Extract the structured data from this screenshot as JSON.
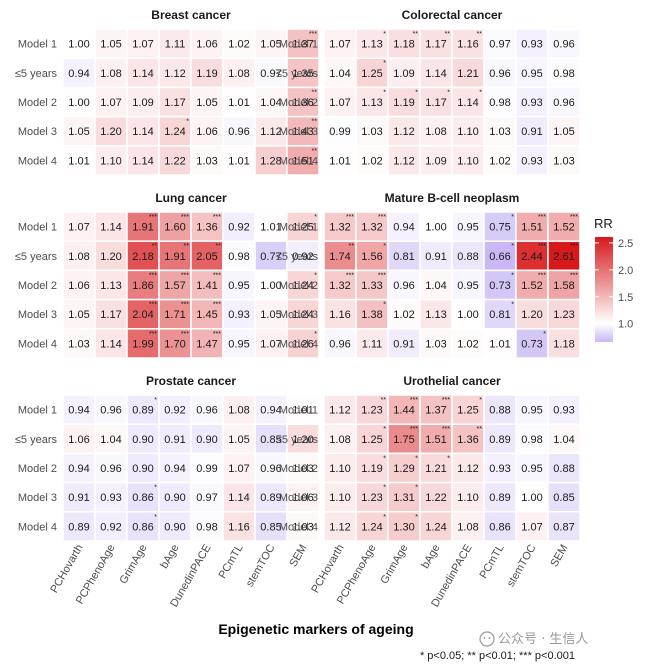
{
  "chart_data": {
    "type": "heatmap",
    "x_title": "Epigenetic markers of ageing",
    "footnote": "* p<0.05; ** p<0.01; *** p<0.001",
    "watermark": "公众号 · 生信人",
    "legend": {
      "title": "RR",
      "ticks": [
        "1.0",
        "1.5",
        "2.0",
        "2.5"
      ],
      "tick_values": [
        1.0,
        1.5,
        2.0,
        2.5
      ],
      "range": [
        0.66,
        2.61
      ]
    },
    "colors": {
      "low": "#c9b8f5",
      "mid": "#ffffff",
      "high": "#d7191c"
    },
    "markers": [
      "PCHovarth",
      "PCPhenoAge",
      "GrimAge",
      "bAge",
      "DunedinPACE",
      "PCmTL",
      "stemTOC",
      "SEM"
    ],
    "rows": [
      "Model 1",
      "≤5 years",
      "Model 2",
      "Model 3",
      "Model 4"
    ],
    "panels": [
      {
        "title": "Breast cancer",
        "values": [
          [
            1.0,
            1.05,
            1.07,
            1.11,
            1.06,
            1.02,
            1.05,
            1.37
          ],
          [
            0.94,
            1.08,
            1.14,
            1.12,
            1.19,
            1.08,
            0.97,
            1.35
          ],
          [
            1.0,
            1.07,
            1.09,
            1.17,
            1.05,
            1.01,
            1.04,
            1.36
          ],
          [
            1.05,
            1.2,
            1.14,
            1.24,
            1.06,
            0.96,
            1.12,
            1.43
          ],
          [
            1.01,
            1.1,
            1.14,
            1.22,
            1.03,
            1.01,
            1.28,
            1.51
          ]
        ],
        "labels": [
          [
            "1.00",
            "1.05",
            "1.07",
            "1.11",
            "1.06",
            "1.02",
            "1.05",
            "1.37"
          ],
          [
            "0.94",
            "1.08",
            "1.14",
            "1.12",
            "1.19",
            "1.08",
            "0.97",
            "1.35"
          ],
          [
            "1.00",
            "1.07",
            "1.09",
            "1.17",
            "1.05",
            "1.01",
            "1.04",
            "1.36"
          ],
          [
            "1.05",
            "1.20",
            "1.14",
            "1.24",
            "1.06",
            "0.96",
            "1.12",
            "1.43"
          ],
          [
            "1.01",
            "1.10",
            "1.14",
            "1.22",
            "1.03",
            "1.01",
            "1.28",
            "1.51"
          ]
        ],
        "stars": [
          [
            "",
            "",
            "",
            "",
            "",
            "",
            "",
            "***"
          ],
          [
            "",
            "",
            "",
            "",
            "",
            "",
            "",
            ""
          ],
          [
            "",
            "",
            "",
            "",
            "",
            "",
            "",
            "**"
          ],
          [
            "",
            "",
            "",
            "*",
            "",
            "",
            "",
            "**"
          ],
          [
            "",
            "",
            "",
            "",
            "",
            "",
            "",
            "**"
          ]
        ]
      },
      {
        "title": "Colorectal cancer",
        "values": [
          [
            1.07,
            1.13,
            1.18,
            1.17,
            1.16,
            0.97,
            0.93,
            0.96
          ],
          [
            1.04,
            1.25,
            1.09,
            1.14,
            1.21,
            0.96,
            0.95,
            0.98
          ],
          [
            1.07,
            1.13,
            1.19,
            1.17,
            1.14,
            0.98,
            0.93,
            0.96
          ],
          [
            0.99,
            1.03,
            1.12,
            1.08,
            1.1,
            1.03,
            0.91,
            1.05
          ],
          [
            1.01,
            1.02,
            1.12,
            1.09,
            1.1,
            1.02,
            0.93,
            1.03
          ]
        ],
        "labels": [
          [
            "1.07",
            "1.13",
            "1.18",
            "1.17",
            "1.16",
            "0.97",
            "0.93",
            "0.96"
          ],
          [
            "1.04",
            "1.25",
            "1.09",
            "1.14",
            "1.21",
            "0.96",
            "0.95",
            "0.98"
          ],
          [
            "1.07",
            "1.13",
            "1.19",
            "1.17",
            "1.14",
            "0.98",
            "0.93",
            "0.96"
          ],
          [
            "0.99",
            "1.03",
            "1.12",
            "1.08",
            "1.10",
            "1.03",
            "0.91",
            "1.05"
          ],
          [
            "1.01",
            "1.02",
            "1.12",
            "1.09",
            "1.10",
            "1.02",
            "0.93",
            "1.03"
          ]
        ],
        "stars": [
          [
            "",
            "*",
            "**",
            "**",
            "**",
            "",
            "",
            ""
          ],
          [
            "",
            "*",
            "",
            "",
            "",
            "",
            "",
            ""
          ],
          [
            "",
            "*",
            "*",
            "*",
            "*",
            "",
            "",
            ""
          ],
          [
            "",
            "",
            "",
            "",
            "",
            "",
            "",
            ""
          ],
          [
            "",
            "",
            "",
            "",
            "",
            "",
            "",
            ""
          ]
        ]
      },
      {
        "title": "Lung cancer",
        "values": [
          [
            1.07,
            1.14,
            1.91,
            1.6,
            1.36,
            0.92,
            1.01,
            1.25
          ],
          [
            1.08,
            1.2,
            2.18,
            1.91,
            2.05,
            0.98,
            0.77,
            0.92
          ],
          [
            1.06,
            1.13,
            1.86,
            1.57,
            1.41,
            0.95,
            1.0,
            1.24
          ],
          [
            1.05,
            1.17,
            2.04,
            1.71,
            1.45,
            0.93,
            1.05,
            1.24
          ],
          [
            1.03,
            1.14,
            1.99,
            1.7,
            1.47,
            0.95,
            1.07,
            1.26
          ]
        ],
        "labels": [
          [
            "1.07",
            "1.14",
            "1.91",
            "1.60",
            "1.36",
            "0.92",
            "1.01",
            "1.25"
          ],
          [
            "1.08",
            "1.20",
            "2.18",
            "1.91",
            "2.05",
            "0.98",
            "0.77",
            "0.92"
          ],
          [
            "1.06",
            "1.13",
            "1.86",
            "1.57",
            "1.41",
            "0.95",
            "1.00",
            "1.24"
          ],
          [
            "1.05",
            "1.17",
            "2.04",
            "1.71",
            "1.45",
            "0.93",
            "1.05",
            "1.24"
          ],
          [
            "1.03",
            "1.14",
            "1.99",
            "1.70",
            "1.47",
            "0.95",
            "1.07",
            "1.26"
          ]
        ],
        "stars": [
          [
            "",
            "",
            "***",
            "***",
            "***",
            "",
            "",
            "*"
          ],
          [
            "",
            "",
            "**",
            "**",
            "**",
            "",
            "",
            ""
          ],
          [
            "",
            "",
            "***",
            "***",
            "***",
            "",
            "",
            "*"
          ],
          [
            "",
            "",
            "***",
            "***",
            "***",
            "",
            "",
            ""
          ],
          [
            "",
            "",
            "***",
            "***",
            "***",
            "",
            "",
            "*"
          ]
        ]
      },
      {
        "title": "Mature B-cell neoplasm",
        "values": [
          [
            1.32,
            1.32,
            0.94,
            1.0,
            0.95,
            0.75,
            1.51,
            1.52
          ],
          [
            1.74,
            1.56,
            0.81,
            0.91,
            0.88,
            0.66,
            2.44,
            2.61
          ],
          [
            1.32,
            1.33,
            0.96,
            1.04,
            0.95,
            0.73,
            1.52,
            1.58
          ],
          [
            1.16,
            1.38,
            1.02,
            1.13,
            1.0,
            0.81,
            1.2,
            1.23
          ],
          [
            0.96,
            1.11,
            0.91,
            1.03,
            1.02,
            1.01,
            0.73,
            1.18
          ]
        ],
        "labels": [
          [
            "1.32",
            "1.32",
            "0.94",
            "1.00",
            "0.95",
            "0.75",
            "1.51",
            "1.52"
          ],
          [
            "1.74",
            "1.56",
            "0.81",
            "0.91",
            "0.88",
            "0.66",
            "2.44",
            "2.61"
          ],
          [
            "1.32",
            "1.33",
            "0.96",
            "1.04",
            "0.95",
            "0.73",
            "1.52",
            "1.58"
          ],
          [
            "1.16",
            "1.38",
            "1.02",
            "1.13",
            "1.00",
            "0.81",
            "1.20",
            "1.23"
          ],
          [
            "0.96",
            "1.11",
            "0.91",
            "1.03",
            "1.02",
            "1.01",
            "0.73",
            "1.18"
          ]
        ],
        "stars": [
          [
            "***",
            "***",
            "",
            "",
            "",
            "*",
            "***",
            "***"
          ],
          [
            "**",
            "*",
            "",
            "",
            "",
            "*",
            "***",
            "***"
          ],
          [
            "***",
            "***",
            "",
            "",
            "",
            "*",
            "***",
            "***"
          ],
          [
            "",
            "*",
            "",
            "",
            "",
            "*",
            "",
            ""
          ],
          [
            "",
            "",
            "",
            "",
            "",
            "",
            "*",
            ""
          ]
        ]
      },
      {
        "title": "Prostate cancer",
        "values": [
          [
            0.94,
            0.96,
            0.89,
            0.92,
            0.96,
            1.08,
            0.94,
            1.01
          ],
          [
            1.06,
            1.04,
            0.9,
            0.91,
            0.9,
            1.05,
            0.85,
            1.2
          ],
          [
            0.94,
            0.96,
            0.9,
            0.94,
            0.99,
            1.07,
            0.96,
            1.03
          ],
          [
            0.91,
            0.93,
            0.86,
            0.9,
            0.97,
            1.14,
            0.89,
            1.06
          ],
          [
            0.89,
            0.92,
            0.86,
            0.9,
            0.98,
            1.16,
            0.85,
            1.03
          ]
        ],
        "labels": [
          [
            "0.94",
            "0.96",
            "0.89",
            "0.92",
            "0.96",
            "1.08",
            "0.94",
            "1.01"
          ],
          [
            "1.06",
            "1.04",
            "0.90",
            "0.91",
            "0.90",
            "1.05",
            "0.85",
            "1.20"
          ],
          [
            "0.94",
            "0.96",
            "0.90",
            "0.94",
            "0.99",
            "1.07",
            "0.96",
            "1.03"
          ],
          [
            "0.91",
            "0.93",
            "0.86",
            "0.90",
            "0.97",
            "1.14",
            "0.89",
            "1.06"
          ],
          [
            "0.89",
            "0.92",
            "0.86",
            "0.90",
            "0.98",
            "1.16",
            "0.85",
            "1.03"
          ]
        ],
        "stars": [
          [
            "",
            "",
            "*",
            "",
            "",
            "",
            "",
            ""
          ],
          [
            "",
            "",
            "",
            "",
            "",
            "",
            "",
            ""
          ],
          [
            "",
            "",
            "",
            "",
            "",
            "",
            "",
            ""
          ],
          [
            "",
            "",
            "*",
            "",
            "",
            "",
            "",
            ""
          ],
          [
            "",
            "",
            "*",
            "",
            "",
            "",
            "",
            ""
          ]
        ]
      },
      {
        "title": "Urothelial cancer",
        "values": [
          [
            1.12,
            1.23,
            1.44,
            1.37,
            1.25,
            0.88,
            0.95,
            0.93
          ],
          [
            1.08,
            1.25,
            1.75,
            1.51,
            1.36,
            0.89,
            0.98,
            1.04
          ],
          [
            1.1,
            1.19,
            1.29,
            1.21,
            1.12,
            0.93,
            0.95,
            0.88
          ],
          [
            1.1,
            1.23,
            1.31,
            1.22,
            1.1,
            0.89,
            1.0,
            0.85
          ],
          [
            1.12,
            1.24,
            1.3,
            1.24,
            1.08,
            0.86,
            1.07,
            0.87
          ]
        ],
        "labels": [
          [
            "1.12",
            "1.23",
            "1.44",
            "1.37",
            "1.25",
            "0.88",
            "0.95",
            "0.93"
          ],
          [
            "1.08",
            "1.25",
            "1.75",
            "1.51",
            "1.36",
            "0.89",
            "0.98",
            "1.04"
          ],
          [
            "1.10",
            "1.19",
            "1.29",
            "1.21",
            "1.12",
            "0.93",
            "0.95",
            "0.88"
          ],
          [
            "1.10",
            "1.23",
            "1.31",
            "1.22",
            "1.10",
            "0.89",
            "1.00",
            "0.85"
          ],
          [
            "1.12",
            "1.24",
            "1.30",
            "1.24",
            "1.08",
            "0.86",
            "1.07",
            "0.87"
          ]
        ],
        "stars": [
          [
            "",
            "**",
            "***",
            "***",
            "*",
            "",
            "",
            ""
          ],
          [
            "",
            "*",
            "***",
            "***",
            "**",
            "",
            "",
            ""
          ],
          [
            "",
            "*",
            "*",
            "*",
            "",
            "",
            "",
            ""
          ],
          [
            "",
            "*",
            "*",
            "",
            "",
            "",
            "",
            ""
          ],
          [
            "",
            "*",
            "*",
            "",
            "",
            "",
            "",
            ""
          ]
        ]
      }
    ]
  }
}
